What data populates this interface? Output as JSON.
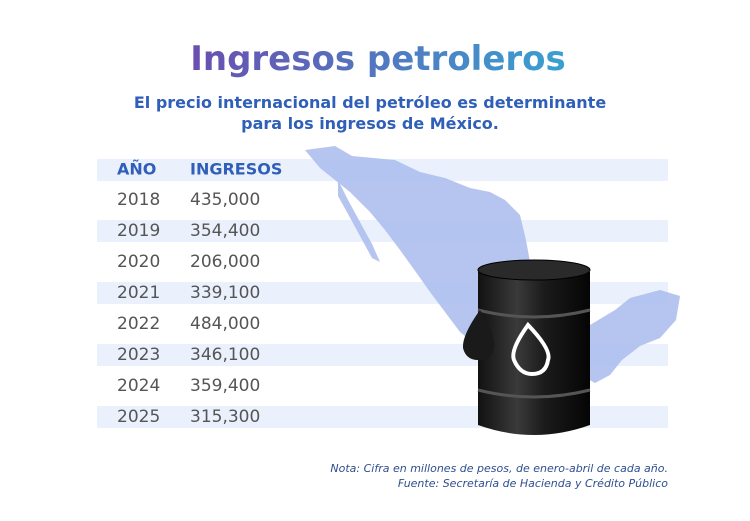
{
  "header": {
    "title": "Ingresos petroleros",
    "subtitle": [
      "El precio internacional del petróleo es determinante",
      "para los ingresos de México."
    ]
  },
  "table": {
    "columns": [
      "AÑO",
      "INGRESOS"
    ],
    "rows": [
      [
        "2018",
        "435,000"
      ],
      [
        "2019",
        "354,400"
      ],
      [
        "2020",
        "206,000"
      ],
      [
        "2021",
        "339,100"
      ],
      [
        "2022",
        "484,000"
      ],
      [
        "2023",
        "346,100"
      ],
      [
        "2024",
        "359,400"
      ],
      [
        "2025",
        "315,300"
      ]
    ]
  },
  "notes": [
    "Nota: Cifra en millones de pesos, de enero-abril de cada año.",
    "Fuente: Secretaría de Hacienda y Crédito Público"
  ]
}
